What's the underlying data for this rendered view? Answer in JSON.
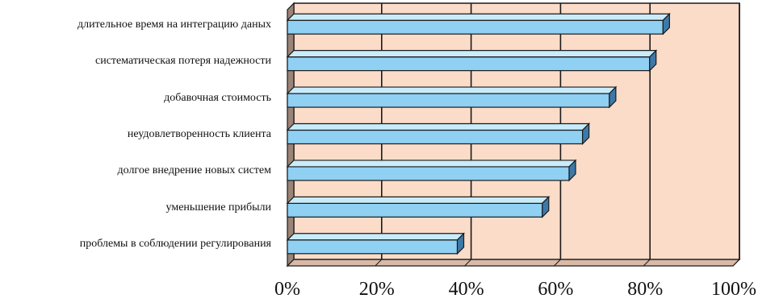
{
  "chart_data": {
    "type": "bar",
    "orientation": "horizontal",
    "style": "3d",
    "categories": [
      "длительное время на интеграцию даных",
      "систематическая потеря надежности",
      "добавочная стоимость",
      "неудовлетворенность клиента",
      "долгое внедрение новых систем",
      "уменьшение прибыли",
      "проблемы в соблюдении регулирования"
    ],
    "values": [
      84,
      81,
      72,
      66,
      63,
      57,
      38
    ],
    "xlim": [
      0,
      100
    ],
    "x_ticks": [
      "0%",
      "20%",
      "40%",
      "60%",
      "80%",
      "100%"
    ],
    "grid": true,
    "legend": "none",
    "colors": {
      "plot_background": "#fbdcc9",
      "bar_face": "#8fd0f3",
      "bar_top": "#c9ecfb",
      "bar_side": "#3d79a8",
      "outline": "#1a1a1a"
    }
  }
}
